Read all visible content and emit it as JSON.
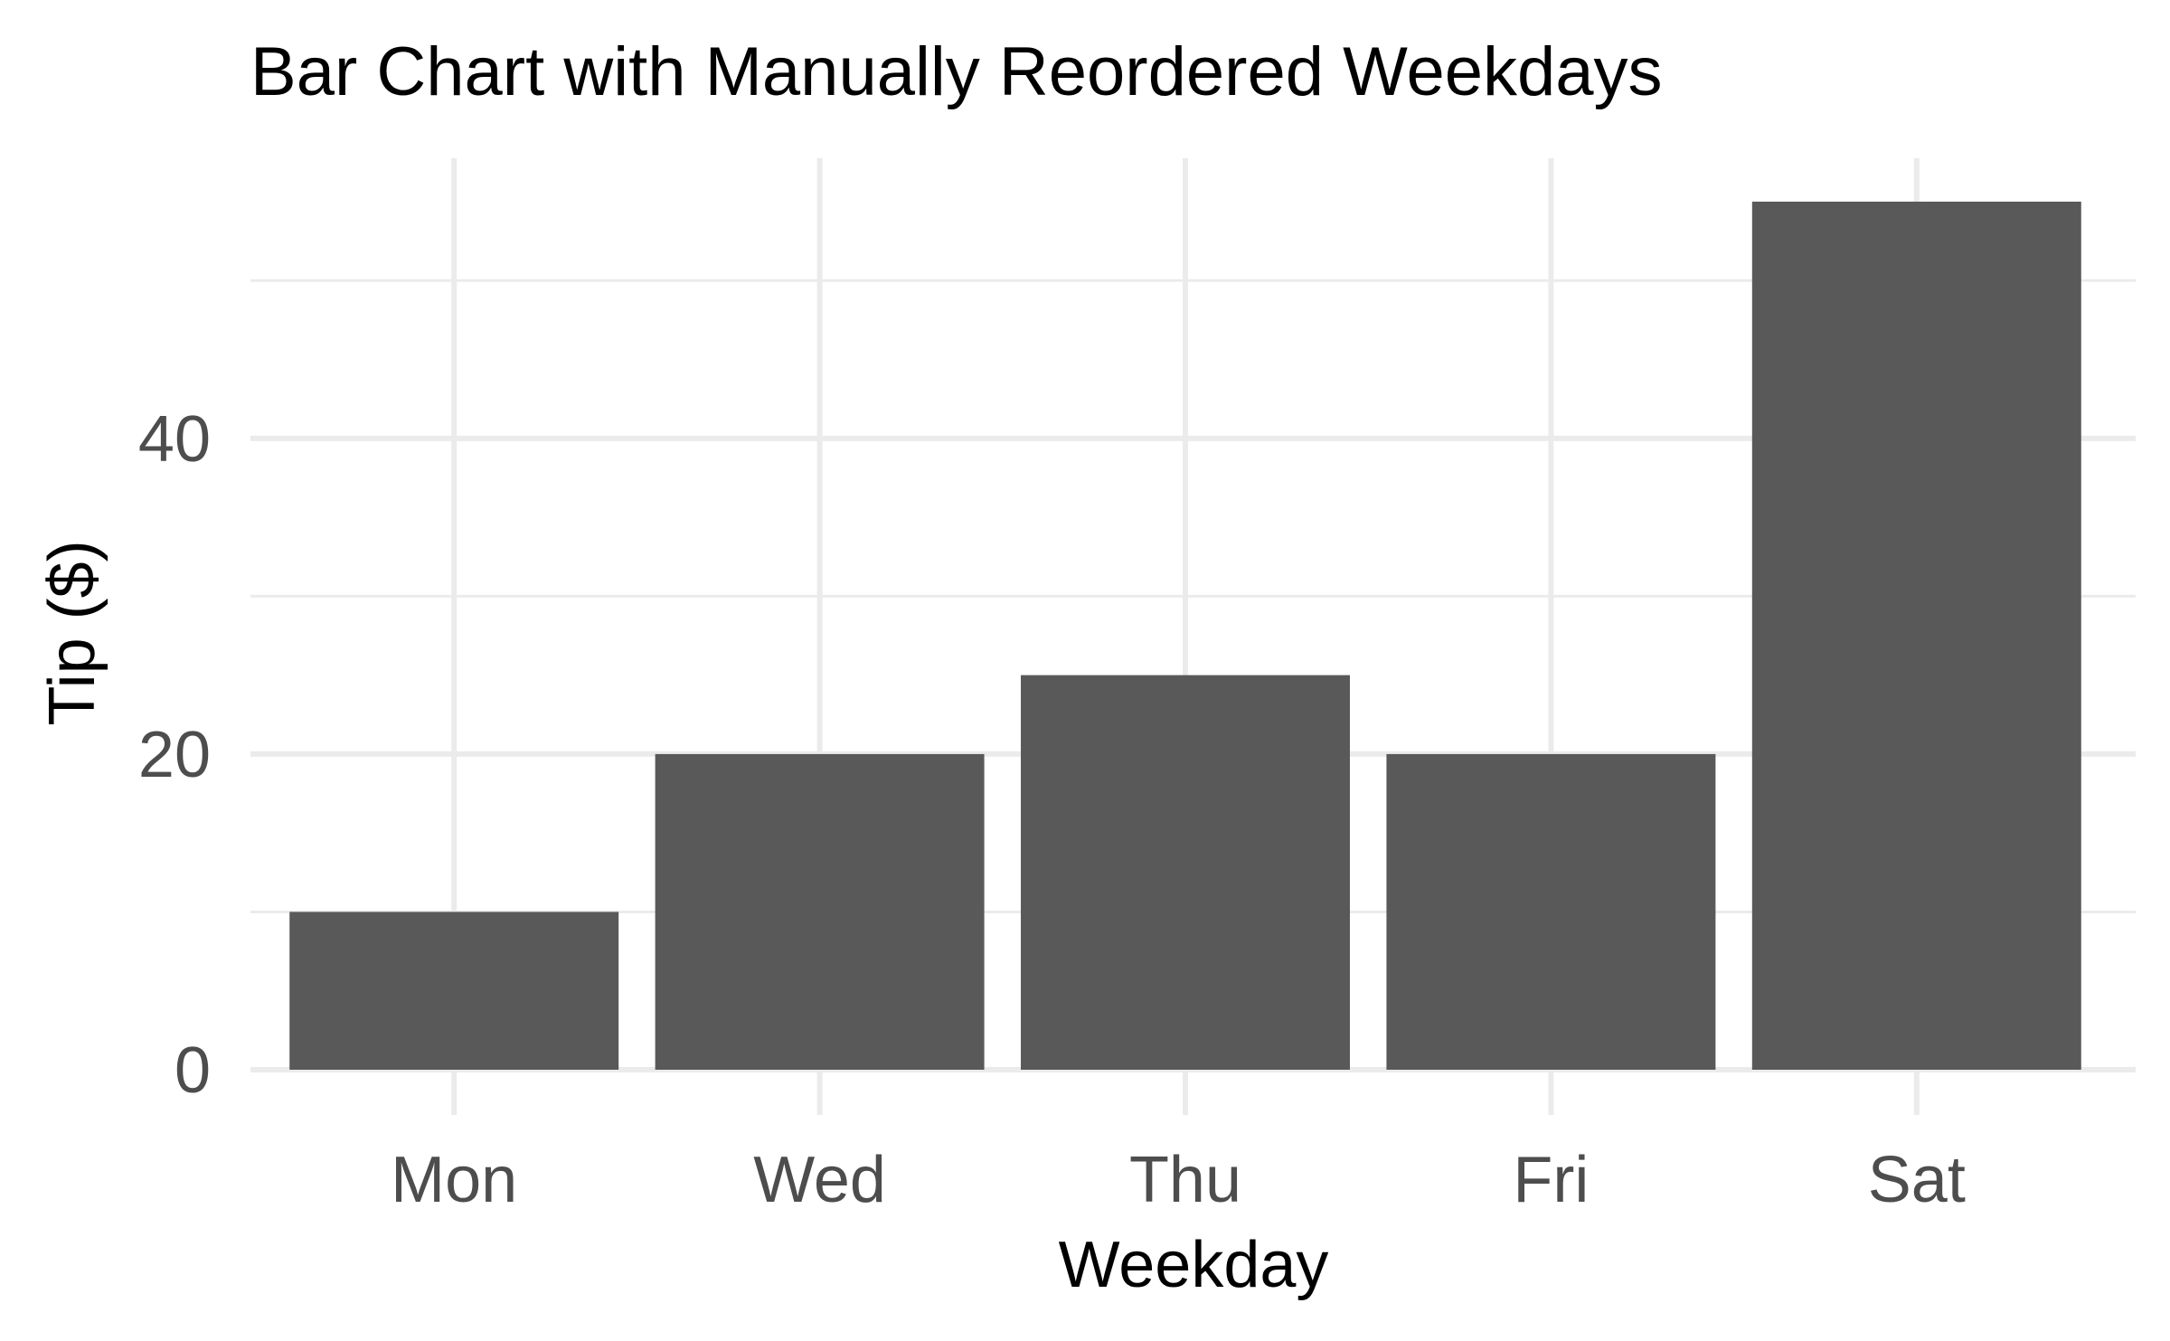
{
  "chart_data": {
    "type": "bar",
    "title": "Bar Chart with Manually Reordered Weekdays",
    "xlabel": "Weekday",
    "ylabel": "Tip ($)",
    "categories": [
      "Mon",
      "Wed",
      "Thu",
      "Fri",
      "Sat"
    ],
    "values": [
      10,
      20,
      25,
      20,
      55
    ],
    "ylim": [
      0,
      57.75
    ],
    "yticks": [
      0,
      20,
      40
    ],
    "ytick_labels": [
      "0",
      "20",
      "40"
    ],
    "y_minor_ticks": [
      10,
      30,
      50
    ],
    "grid": true,
    "legend": "none",
    "bar_color": "#595959",
    "grid_color": "#ebebeb",
    "tick_label_color": "#4d4d4d"
  }
}
